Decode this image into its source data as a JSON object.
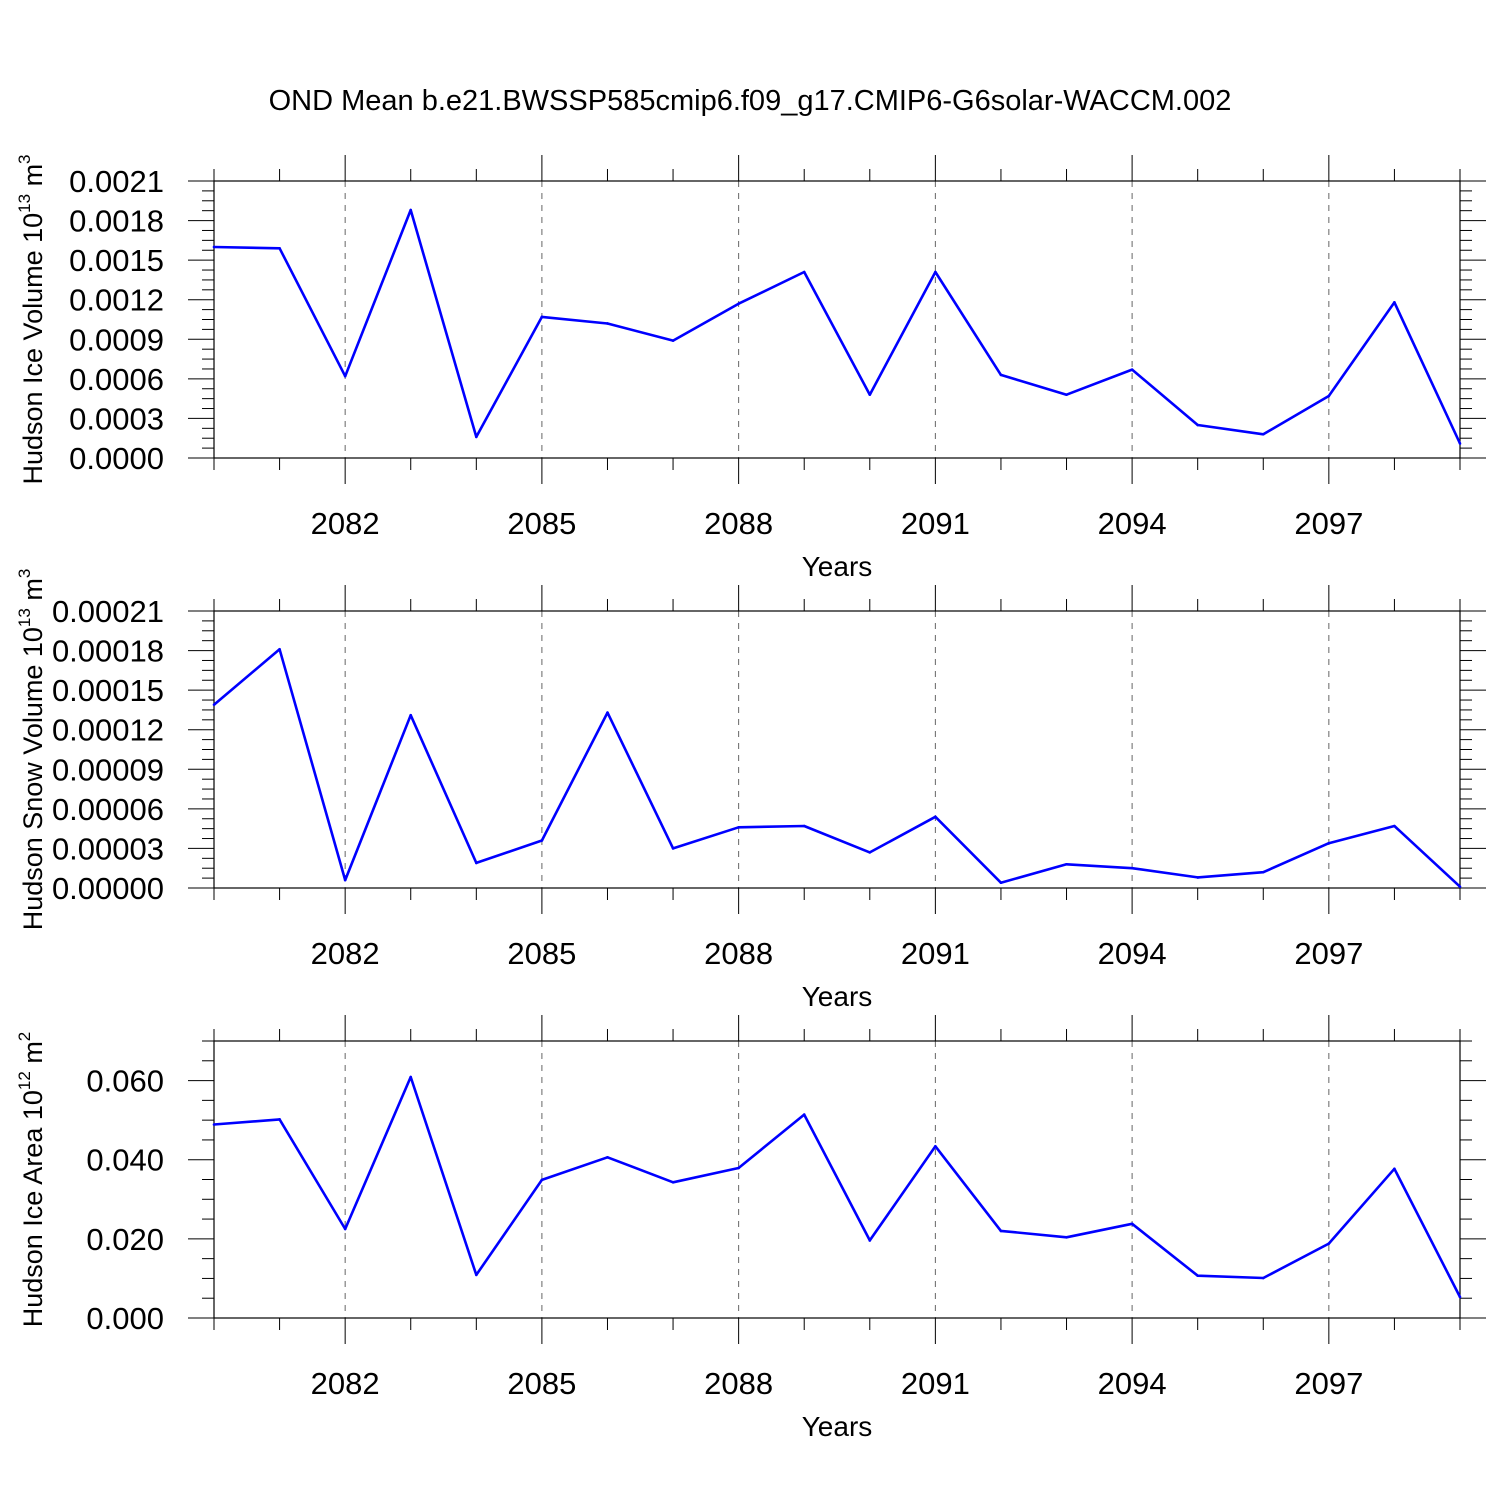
{
  "title": "OND Mean b.e21.BWSSP585cmip6.f09_g17.CMIP6-G6solar-WACCM.002",
  "chart_data": [
    {
      "type": "line",
      "ylabel": "Hudson Ice Volume 10",
      "ylabel_exp": "13",
      "ylabel_unit": " m",
      "ylabel_unit_exp": "3",
      "xlabel": "Years",
      "ylim": [
        0,
        0.0021
      ],
      "yticks": [
        "0.0000",
        "0.0003",
        "0.0006",
        "0.0009",
        "0.0012",
        "0.0015",
        "0.0018",
        "0.0021"
      ],
      "xlim": [
        2080,
        2099
      ],
      "xticks": [
        "2082",
        "2085",
        "2088",
        "2091",
        "2094",
        "2097"
      ],
      "x": [
        2080,
        2081,
        2082,
        2083,
        2084,
        2085,
        2086,
        2087,
        2088,
        2089,
        2090,
        2091,
        2092,
        2093,
        2094,
        2095,
        2096,
        2097,
        2098,
        2099
      ],
      "series": [
        {
          "color": "#0000ff",
          "values": [
            0.0016,
            0.00159,
            0.00062,
            0.00188,
            0.00016,
            0.00107,
            0.00102,
            0.00089,
            0.00117,
            0.00141,
            0.00048,
            0.00141,
            0.00063,
            0.00048,
            0.00067,
            0.00025,
            0.00018,
            0.00047,
            0.00118,
            0.00011
          ]
        }
      ]
    },
    {
      "type": "line",
      "ylabel": "Hudson Snow Volume 10",
      "ylabel_exp": "13",
      "ylabel_unit": " m",
      "ylabel_unit_exp": "3",
      "xlabel": "Years",
      "ylim": [
        0,
        0.00021
      ],
      "yticks": [
        "0.00000",
        "0.00003",
        "0.00006",
        "0.00009",
        "0.00012",
        "0.00015",
        "0.00018",
        "0.00021"
      ],
      "xlim": [
        2080,
        2099
      ],
      "xticks": [
        "2082",
        "2085",
        "2088",
        "2091",
        "2094",
        "2097"
      ],
      "x": [
        2080,
        2081,
        2082,
        2083,
        2084,
        2085,
        2086,
        2087,
        2088,
        2089,
        2090,
        2091,
        2092,
        2093,
        2094,
        2095,
        2096,
        2097,
        2098,
        2099
      ],
      "series": [
        {
          "color": "#0000ff",
          "values": [
            0.000139,
            0.000181,
            6e-06,
            0.000131,
            1.9e-05,
            3.6e-05,
            0.000133,
            3e-05,
            4.6e-05,
            4.7e-05,
            2.7e-05,
            5.4e-05,
            4e-06,
            1.8e-05,
            1.5e-05,
            8e-06,
            1.2e-05,
            3.4e-05,
            4.7e-05,
            1e-06
          ]
        }
      ]
    },
    {
      "type": "line",
      "ylabel": "Hudson Ice Area 10",
      "ylabel_exp": "12",
      "ylabel_unit": " m",
      "ylabel_unit_exp": "2",
      "xlabel": "Years",
      "ylim": [
        0,
        0.07
      ],
      "yticks": [
        "0.000",
        "0.020",
        "0.040",
        "0.060"
      ],
      "xlim": [
        2080,
        2099
      ],
      "xticks": [
        "2082",
        "2085",
        "2088",
        "2091",
        "2094",
        "2097"
      ],
      "x": [
        2080,
        2081,
        2082,
        2083,
        2084,
        2085,
        2086,
        2087,
        2088,
        2089,
        2090,
        2091,
        2092,
        2093,
        2094,
        2095,
        2096,
        2097,
        2098,
        2099
      ],
      "series": [
        {
          "color": "#0000ff",
          "values": [
            0.0489,
            0.0502,
            0.0225,
            0.0609,
            0.0109,
            0.0349,
            0.0406,
            0.0343,
            0.0379,
            0.0514,
            0.0196,
            0.0434,
            0.022,
            0.0204,
            0.0238,
            0.0107,
            0.0101,
            0.0188,
            0.0377,
            0.0053
          ]
        }
      ]
    }
  ]
}
